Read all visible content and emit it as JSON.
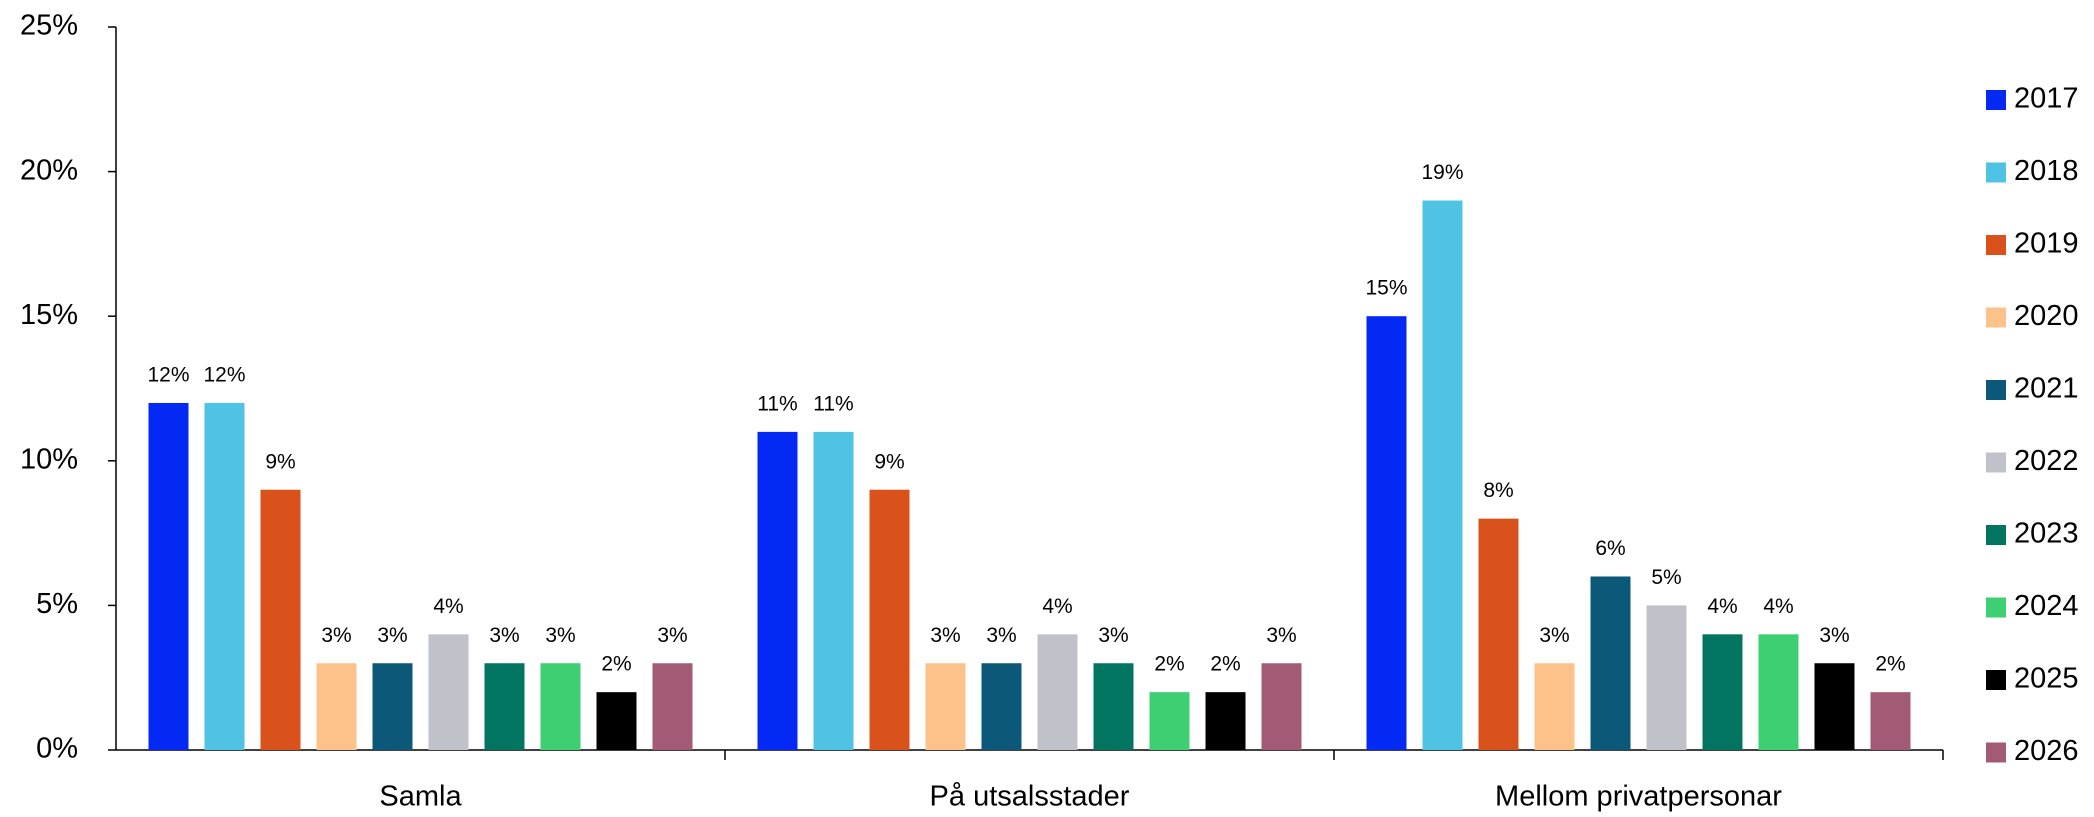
{
  "chart_data": {
    "type": "bar",
    "categories": [
      "Samla",
      "På utsalsstader",
      "Mellom privatpersonar"
    ],
    "ylim": [
      0,
      25
    ],
    "yticks": [
      {
        "value": 0,
        "label": "0%"
      },
      {
        "value": 5,
        "label": "5%"
      },
      {
        "value": 10,
        "label": "10%"
      },
      {
        "value": 15,
        "label": "15%"
      },
      {
        "value": 20,
        "label": "20%"
      },
      {
        "value": 25,
        "label": "25%"
      }
    ],
    "legend": "right",
    "series": [
      {
        "name": "2017",
        "color": "#0529f5",
        "values": [
          12,
          11,
          15
        ],
        "value_labels": [
          "12%",
          "11%",
          "15%"
        ]
      },
      {
        "name": "2018",
        "color": "#4fc3e3",
        "values": [
          12,
          11,
          19
        ],
        "value_labels": [
          "12%",
          "11%",
          "19%"
        ]
      },
      {
        "name": "2019",
        "color": "#d9521b",
        "values": [
          9,
          9,
          8
        ],
        "value_labels": [
          "9%",
          "9%",
          "8%"
        ]
      },
      {
        "name": "2020",
        "color": "#fdc18a",
        "values": [
          3,
          3,
          3
        ],
        "value_labels": [
          "3%",
          "3%",
          "3%"
        ]
      },
      {
        "name": "2021",
        "color": "#0b5878",
        "values": [
          3,
          3,
          6
        ],
        "value_labels": [
          "3%",
          "3%",
          "6%"
        ]
      },
      {
        "name": "2022",
        "color": "#bfc2c8",
        "values": [
          4,
          4,
          5
        ],
        "value_labels": [
          "4%",
          "4%",
          "5%"
        ]
      },
      {
        "name": "2023",
        "color": "#017560",
        "values": [
          3,
          3,
          4
        ],
        "value_labels": [
          "3%",
          "3%",
          "4%"
        ]
      },
      {
        "name": "2024",
        "color": "#3ecf72",
        "values": [
          3,
          2,
          4
        ],
        "value_labels": [
          "3%",
          "2%",
          "4%"
        ]
      },
      {
        "name": "2025",
        "color": "#000000",
        "values": [
          2,
          2,
          3
        ],
        "value_labels": [
          "2%",
          "2%",
          "3%"
        ]
      },
      {
        "name": "2026",
        "color": "#a25a76",
        "values": [
          3,
          3,
          2
        ],
        "value_labels": [
          "3%",
          "3%",
          "2%"
        ]
      }
    ]
  }
}
